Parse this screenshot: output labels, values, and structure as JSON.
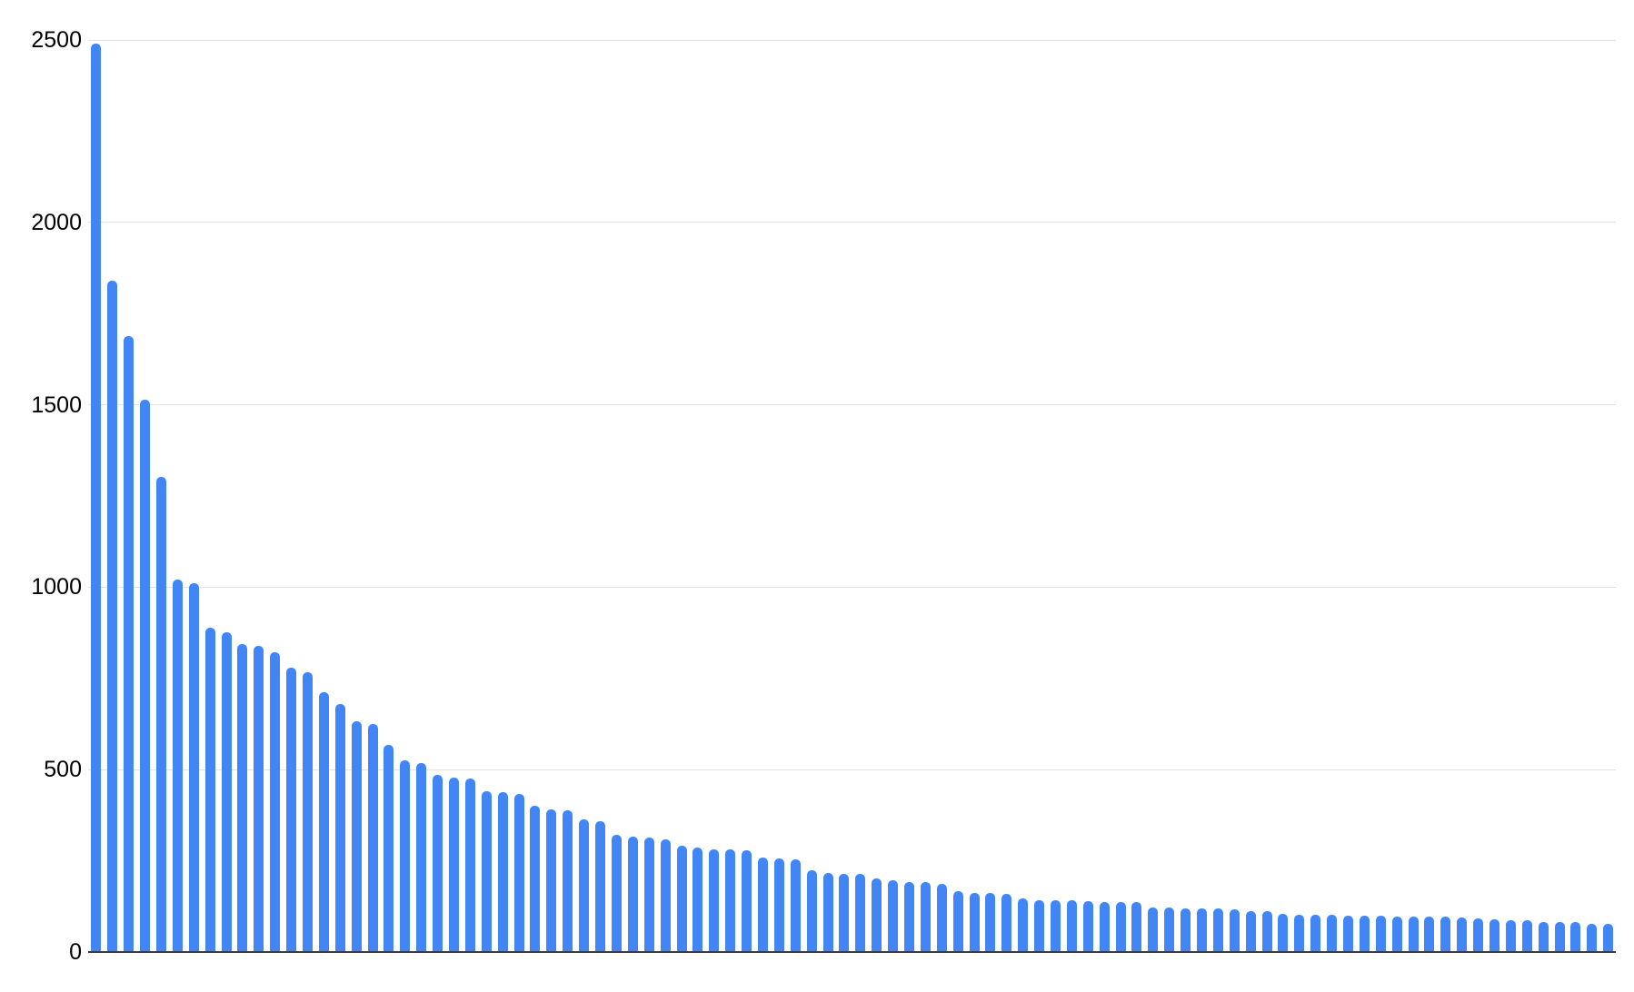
{
  "chart_data": {
    "type": "bar",
    "title": "",
    "xlabel": "",
    "ylabel": "",
    "ylim": [
      0,
      2500
    ],
    "y_ticks": [
      0,
      500,
      1000,
      1500,
      2000,
      2500
    ],
    "y_tick_labels": [
      "0",
      "500",
      "1000",
      "1500",
      "2000",
      "2500"
    ],
    "x_tick_labels": [],
    "grid": true,
    "legend_position": "none",
    "bar_count": 94,
    "values": [
      2489,
      1841,
      1689,
      1513,
      1303,
      1021,
      1012,
      890,
      876,
      843,
      838,
      821,
      779,
      768,
      712,
      679,
      632,
      625,
      567,
      526,
      518,
      485,
      479,
      475,
      441,
      439,
      434,
      400,
      391,
      389,
      364,
      358,
      321,
      316,
      314,
      309,
      291,
      286,
      282,
      281,
      280,
      259,
      257,
      255,
      224,
      217,
      215,
      214,
      202,
      197,
      193,
      191,
      186,
      166,
      163,
      161,
      160,
      147,
      143,
      142,
      142,
      139,
      138,
      138,
      137,
      123,
      122,
      120,
      119,
      119,
      118,
      112,
      111,
      104,
      103,
      102,
      101,
      100,
      100,
      99,
      98,
      98,
      98,
      97,
      94,
      93,
      89,
      88,
      87,
      83,
      82,
      81,
      78,
      77
    ],
    "colors": {
      "bar": "#4285f4",
      "gridline": "#e3e3e3",
      "axis_line": "#3c3c3c",
      "tick_text": "#000000",
      "background": "#ffffff"
    }
  }
}
